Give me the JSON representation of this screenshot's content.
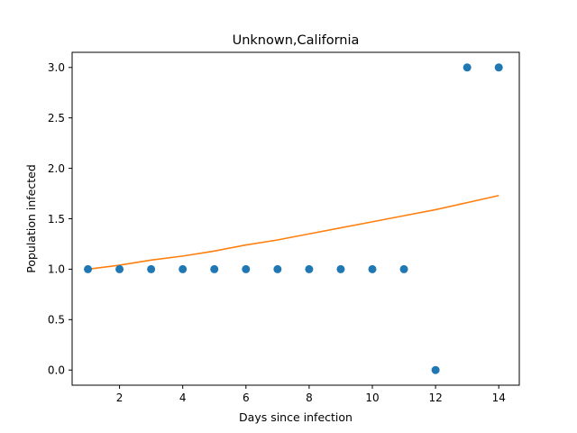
{
  "chart_data": {
    "type": "scatter",
    "title": "Unknown,California",
    "xlabel": "Days since infection",
    "ylabel": "Population infected",
    "xlim": [
      0.5,
      14.65
    ],
    "ylim": [
      -0.15,
      3.15
    ],
    "xticks": [
      2,
      4,
      6,
      8,
      10,
      12,
      14
    ],
    "yticks": [
      0.0,
      0.5,
      1.0,
      1.5,
      2.0,
      2.5,
      3.0
    ],
    "grid": false,
    "series": [
      {
        "kind": "scatter",
        "color": "#1f77b4",
        "x": [
          1,
          2,
          3,
          4,
          5,
          6,
          7,
          8,
          9,
          10,
          11,
          12,
          13,
          14
        ],
        "y": [
          1,
          1,
          1,
          1,
          1,
          1,
          1,
          1,
          1,
          1,
          1,
          0,
          3,
          3
        ]
      },
      {
        "kind": "line",
        "color": "#ff7f0e",
        "x": [
          1,
          2,
          3,
          4,
          5,
          6,
          7,
          8,
          9,
          10,
          11,
          12,
          13,
          14
        ],
        "y": [
          1.0,
          1.04,
          1.09,
          1.13,
          1.18,
          1.24,
          1.29,
          1.35,
          1.41,
          1.47,
          1.53,
          1.59,
          1.66,
          1.73
        ]
      }
    ]
  }
}
